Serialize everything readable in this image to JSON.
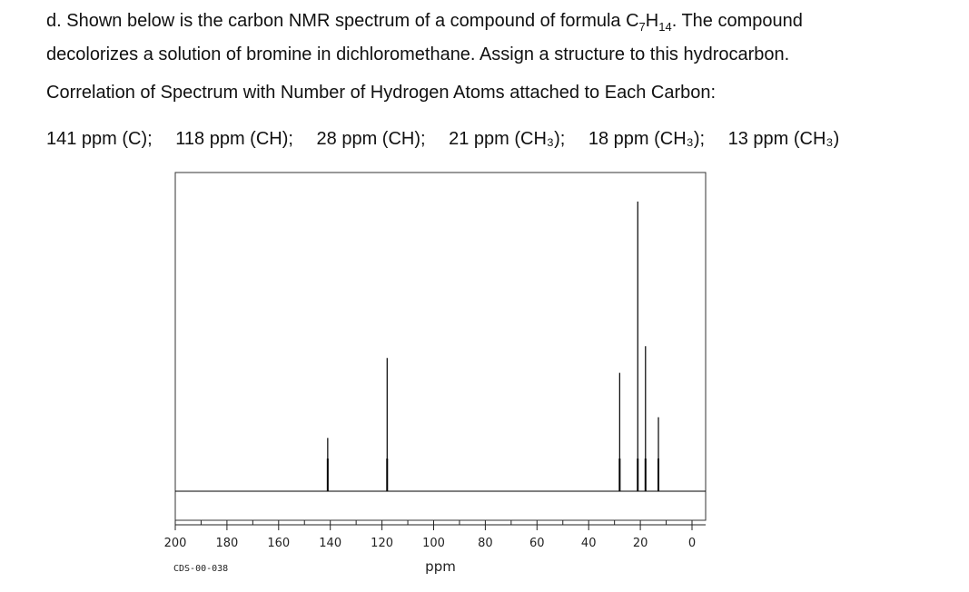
{
  "question": {
    "prefix": "d.",
    "line1_a": "Shown below is the carbon NMR spectrum of a compound of formula C",
    "formula_sub1": "7",
    "formula_h": "H",
    "formula_sub2": "14",
    "line1_b": ".  The  compound",
    "line2": "decolorizes a solution of bromine in dichloromethane.  Assign a structure to this hydrocarbon."
  },
  "correlation": {
    "title": "Correlation of Spectrum with Number of Hydrogen Atoms attached to Each Carbon:",
    "items": [
      "141 ppm (C);",
      "118 ppm (CH);",
      "28 ppm (CH);",
      "21 ppm (CH₃);",
      "18 ppm (CH₃);",
      "13 ppm (CH₃)"
    ]
  },
  "chart_data": {
    "type": "line",
    "title": "",
    "xlabel": "ppm",
    "ylabel": "",
    "xlim": [
      200,
      0
    ],
    "x_reversed": true,
    "x_ticks": [
      200,
      180,
      160,
      140,
      120,
      100,
      80,
      60,
      40,
      20,
      0
    ],
    "x_minor_step": 10,
    "ylim": [
      0,
      1
    ],
    "grid": false,
    "legend": "none",
    "code": "CDS-00-038",
    "peaks": [
      {
        "ppm": 141,
        "height": 0.18
      },
      {
        "ppm": 118,
        "height": 0.45
      },
      {
        "ppm": 28,
        "height": 0.4
      },
      {
        "ppm": 21,
        "height": 0.98
      },
      {
        "ppm": 18,
        "height": 0.49
      },
      {
        "ppm": 13,
        "height": 0.25
      }
    ],
    "line_color": "#000000"
  }
}
